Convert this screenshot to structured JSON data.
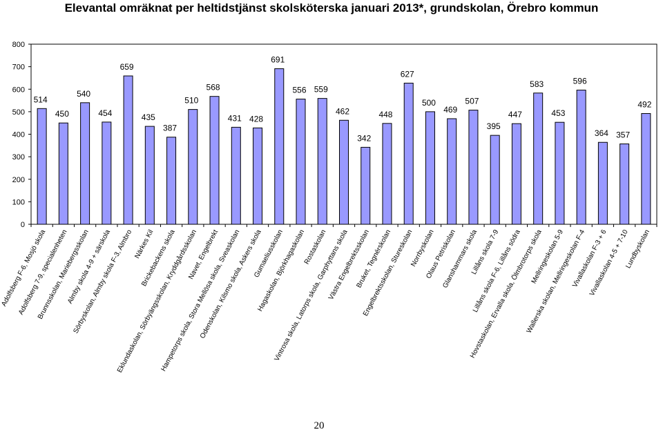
{
  "chart_data": {
    "type": "bar",
    "title": "Elevantal omräknat per heltidstjänst skolsköterska januari 2013*, grundskolan, Örebro kommun",
    "xlabel": "",
    "ylabel": "",
    "ylim": [
      0,
      800
    ],
    "yticks": [
      0,
      100,
      200,
      300,
      400,
      500,
      600,
      700,
      800
    ],
    "grid": false,
    "legend": "none",
    "bar_color": "#9999ff",
    "categories": [
      "Adolfsberg F-6, Mosjö skola",
      "Adolfsberg 7-9, specialenheten",
      "Brunnsskolan, Mariebergsskolan",
      "Almby skola 4-9 + särskola",
      "Sörbyskolan, Almby skola F-3, Almbro",
      "Närkes Kil",
      "Brickebackens skola",
      "Eklundaskolan, Sörbyängsskolan, Kryddgårdsskolan",
      "Navet, Engelbrekt",
      "Hampetorps skola, Stora Mellösa skola, Sveaskolan",
      "Odenskolan, Kilsmo skola, Askers skola",
      "Gumaeliusskolan",
      "Hagaskolan, Björkhagaskolan",
      "Rostaskolan",
      "Vintrosa skola, Latorps skola, Garphyttans skola",
      "Västra Engelbrektsskolan",
      "Bruket, Tegnérskolan",
      "Engelbrektsskolan, Stureskolan",
      "Norrbyskolan",
      "Olaus Petriskolan",
      "Glanshammars skola",
      "Lillåns skola 7-9",
      "Lillåns skola F-6, Lillåns södra",
      "Hovstaskolan, Ervalla skola, Ölmbrotorps skola",
      "Mellringeskolan 5-9",
      "Wallerska skolan, Mellringeskolan F-4",
      "Vivallaskolan F-3 + 6",
      "Vivallaskolan 4-5 + 7-10",
      "Lundbyskolan"
    ],
    "values": [
      514,
      450,
      540,
      454,
      659,
      435,
      387,
      510,
      568,
      431,
      428,
      691,
      556,
      559,
      462,
      342,
      448,
      627,
      500,
      469,
      507,
      395,
      447,
      583,
      453,
      596,
      364,
      357,
      492
    ]
  },
  "page_number": "20"
}
